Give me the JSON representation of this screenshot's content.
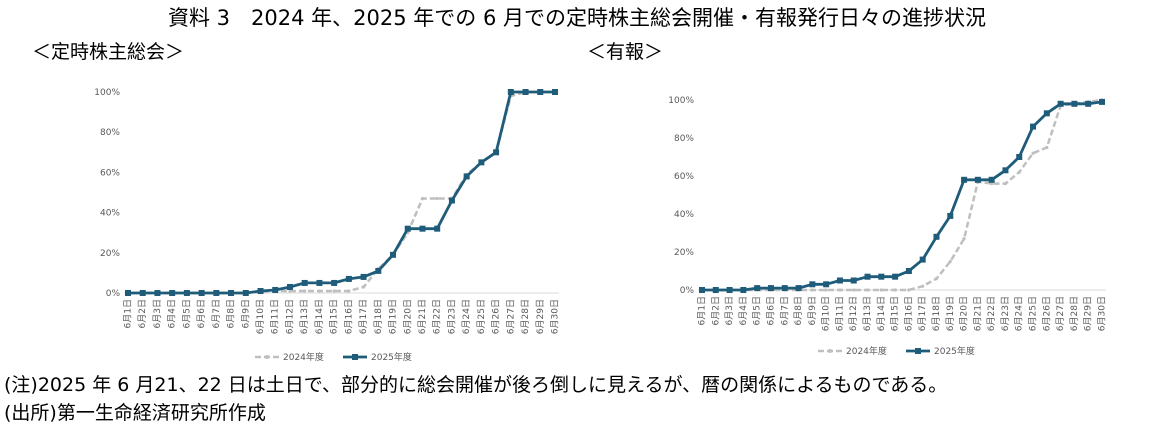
{
  "title": "資料 3　2024 年、2025 年での 6 月での定時株主総会開催・有報発行日々の進捗状況",
  "chart_data": [
    {
      "type": "line",
      "subtitle": "＜定時株主総会＞",
      "categories": [
        "6月1日",
        "6月2日",
        "6月3日",
        "6月4日",
        "6月5日",
        "6月6日",
        "6月7日",
        "6月8日",
        "6月9日",
        "6月10日",
        "6月11日",
        "6月12日",
        "6月13日",
        "6月14日",
        "6月15日",
        "6月16日",
        "6月17日",
        "6月18日",
        "6月19日",
        "6月20日",
        "6月21日",
        "6月22日",
        "6月23日",
        "6月24日",
        "6月25日",
        "6月26日",
        "6月27日",
        "6月28日",
        "6月29日",
        "6月30日"
      ],
      "yticks": [
        "0%",
        "20%",
        "40%",
        "60%",
        "80%",
        "100%"
      ],
      "ylim": [
        0,
        100
      ],
      "legend_position": "bottom",
      "series": [
        {
          "name": "2024年度",
          "color": "#bfbfbf",
          "dash": true,
          "values": [
            0,
            0,
            0,
            0,
            0,
            0,
            0,
            0,
            0,
            0.5,
            1,
            1,
            1,
            1,
            1,
            1,
            3,
            12,
            19,
            30,
            47,
            47,
            47,
            59,
            65,
            70,
            98,
            100,
            100,
            100
          ]
        },
        {
          "name": "2025年度",
          "color": "#1f5c7a",
          "dash": false,
          "values": [
            0,
            0,
            0,
            0,
            0,
            0,
            0,
            0,
            0,
            1,
            1.5,
            3,
            5,
            5,
            5,
            7,
            8,
            11,
            19,
            32,
            32,
            32,
            46,
            58,
            65,
            70,
            100,
            100,
            100,
            100
          ]
        }
      ]
    },
    {
      "type": "line",
      "subtitle": "＜有報＞",
      "categories": [
        "6月1日",
        "6月2日",
        "6月3日",
        "6月4日",
        "6月5日",
        "6月6日",
        "6月7日",
        "6月8日",
        "6月9日",
        "6月10日",
        "6月11日",
        "6月12日",
        "6月13日",
        "6月14日",
        "6月15日",
        "6月16日",
        "6月17日",
        "6月18日",
        "6月19日",
        "6月20日",
        "6月21日",
        "6月22日",
        "6月23日",
        "6月24日",
        "6月25日",
        "6月26日",
        "6月27日",
        "6月28日",
        "6月29日",
        "6月30日"
      ],
      "yticks": [
        "0%",
        "20%",
        "40%",
        "60%",
        "80%",
        "100%"
      ],
      "ylim": [
        0,
        100
      ],
      "legend_position": "bottom",
      "series": [
        {
          "name": "2024年度",
          "color": "#bfbfbf",
          "dash": true,
          "values": [
            0,
            0,
            0,
            0,
            0,
            0,
            0,
            0,
            0,
            0,
            0,
            0,
            0,
            0,
            0,
            0,
            2,
            6,
            15,
            27,
            57,
            56,
            56,
            62,
            72,
            75,
            97,
            98,
            99,
            100
          ]
        },
        {
          "name": "2025年度",
          "color": "#1f5c7a",
          "dash": false,
          "values": [
            0,
            0,
            0,
            0,
            1,
            1,
            1,
            1,
            3,
            3,
            5,
            5,
            7,
            7,
            7,
            10,
            16,
            28,
            39,
            58,
            58,
            58,
            63,
            70,
            86,
            93,
            98,
            98,
            98,
            99
          ]
        }
      ]
    }
  ],
  "notes": [
    "(注)2025 年 6 月21、22 日は土日で、部分的に総会開催が後ろ倒しに見えるが、暦の関係によるものである。",
    "(出所)第一生命経済研究所作成"
  ]
}
